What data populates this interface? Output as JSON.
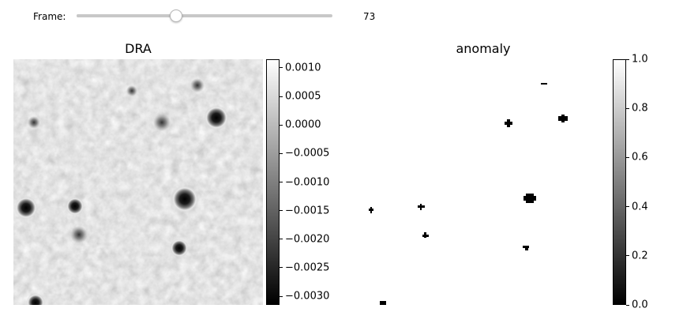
{
  "controls": {
    "frame_label": "Frame:",
    "frame_value": "73",
    "frame_fraction": 0.39
  },
  "dra": {
    "title": "DRA",
    "colorbar": {
      "colormap": "gray",
      "vmin": -0.00315,
      "vmax": 0.00115,
      "ticks": [
        {
          "value": 0.001,
          "label": "0.0010"
        },
        {
          "value": 0.0005,
          "label": "0.0005"
        },
        {
          "value": 0.0,
          "label": "0.0000"
        },
        {
          "value": -0.0005,
          "label": "−0.0005"
        },
        {
          "value": -0.001,
          "label": "−0.0010"
        },
        {
          "value": -0.0015,
          "label": "−0.0015"
        },
        {
          "value": -0.002,
          "label": "−0.0020"
        },
        {
          "value": -0.0025,
          "label": "−0.0025"
        },
        {
          "value": -0.003,
          "label": "−0.0030"
        }
      ]
    }
  },
  "anomaly": {
    "title": "anomaly",
    "colorbar": {
      "colormap": "gray",
      "vmin": 0.0,
      "vmax": 1.0,
      "ticks": [
        {
          "value": 1.0,
          "label": "1.0"
        },
        {
          "value": 0.8,
          "label": "0.8"
        },
        {
          "value": 0.6,
          "label": "0.6"
        },
        {
          "value": 0.4,
          "label": "0.4"
        },
        {
          "value": 0.2,
          "label": "0.2"
        },
        {
          "value": 0.0,
          "label": "0.0"
        }
      ]
    }
  },
  "colors": {
    "background": "#ffffff",
    "image_gray": "#bdbdbd",
    "slider_track": "#c8c8c8"
  }
}
